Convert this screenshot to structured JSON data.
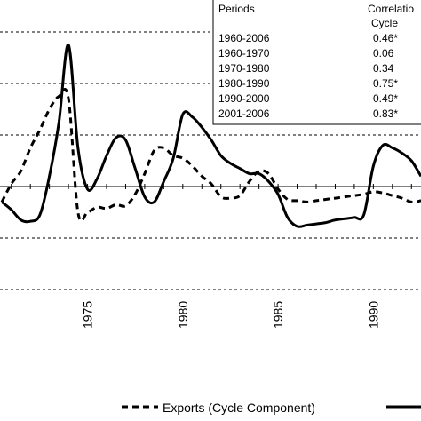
{
  "chart_data": {
    "type": "line",
    "x_tick_labels": [
      "1975",
      "1980",
      "1985",
      "1990"
    ],
    "grid": "horizontal-dashed",
    "series": [
      {
        "name": "Exports (Cycle Component)",
        "style": "dashed",
        "color": "#000000",
        "x": [
          1970.5,
          1971,
          1971.5,
          1972,
          1972.5,
          1973,
          1973.5,
          1974,
          1974.5,
          1975,
          1975.5,
          1976,
          1976.5,
          1977,
          1977.5,
          1978,
          1978.5,
          1979,
          1979.5,
          1980,
          1980.5,
          1981,
          1981.5,
          1982,
          1982.5,
          1983,
          1983.5,
          1984,
          1984.5,
          1985,
          1985.5,
          1986,
          1986.5,
          1987,
          1987.5,
          1988,
          1988.5,
          1989,
          1989.5,
          1990,
          1990.5,
          1991,
          1991.5,
          1992,
          1992.5
        ],
        "values": [
          -0.6,
          0.1,
          0.6,
          1.5,
          2.2,
          3.0,
          3.5,
          3.4,
          -1.0,
          -1.0,
          -0.8,
          -0.85,
          -0.7,
          -0.75,
          -0.3,
          0.5,
          1.4,
          1.5,
          1.2,
          1.1,
          0.8,
          0.4,
          0.1,
          -0.4,
          -0.45,
          -0.35,
          0.2,
          0.6,
          0.5,
          -0.1,
          -0.5,
          -0.55,
          -0.6,
          -0.55,
          -0.5,
          -0.45,
          -0.4,
          -0.35,
          -0.3,
          -0.2,
          -0.25,
          -0.35,
          -0.45,
          -0.6,
          -0.55
        ]
      },
      {
        "name": "",
        "style": "solid",
        "color": "#000000",
        "x": [
          1970.5,
          1971,
          1971.5,
          1972,
          1972.5,
          1973,
          1973.5,
          1974,
          1974.5,
          1975,
          1975.5,
          1976,
          1976.5,
          1977,
          1977.5,
          1978,
          1978.5,
          1979,
          1979.5,
          1980,
          1980.5,
          1981,
          1981.5,
          1982,
          1982.5,
          1983,
          1983.5,
          1984,
          1984.5,
          1985,
          1985.5,
          1986,
          1986.5,
          1987,
          1987.5,
          1988,
          1988.5,
          1989,
          1989.5,
          1990,
          1990.5,
          1991,
          1991.5,
          1992,
          1992.5
        ],
        "values": [
          -0.6,
          -0.9,
          -1.3,
          -1.35,
          -1.1,
          0.4,
          2.5,
          5.5,
          1.5,
          -0.1,
          0.3,
          1.2,
          1.9,
          1.8,
          0.7,
          -0.4,
          -0.6,
          0.2,
          1.1,
          2.8,
          2.7,
          2.3,
          1.8,
          1.2,
          0.9,
          0.7,
          0.5,
          0.5,
          0.2,
          -0.3,
          -1.2,
          -1.55,
          -1.5,
          -1.45,
          -1.4,
          -1.3,
          -1.25,
          -1.2,
          -1.1,
          0.8,
          1.6,
          1.5,
          1.3,
          1.0,
          0.4
        ]
      }
    ],
    "legend": {
      "position": "bottom",
      "entries": [
        {
          "label": "Exports (Cycle Component)",
          "style": "dashed"
        },
        {
          "label": "",
          "style": "solid"
        }
      ]
    }
  },
  "correlation_table": {
    "period_header": "Periods",
    "corr_header": "Correlatio",
    "corr_subheader": "Cycle",
    "rows": [
      {
        "period": "1960-2006",
        "value": "0.46*"
      },
      {
        "period": "1960-1970",
        "value": "0.06"
      },
      {
        "period": "1970-1980",
        "value": "0.34"
      },
      {
        "period": "1980-1990",
        "value": "0.75*"
      },
      {
        "period": "1990-2000",
        "value": "0.49*"
      },
      {
        "period": "2001-2006",
        "value": "0.83*"
      }
    ]
  }
}
